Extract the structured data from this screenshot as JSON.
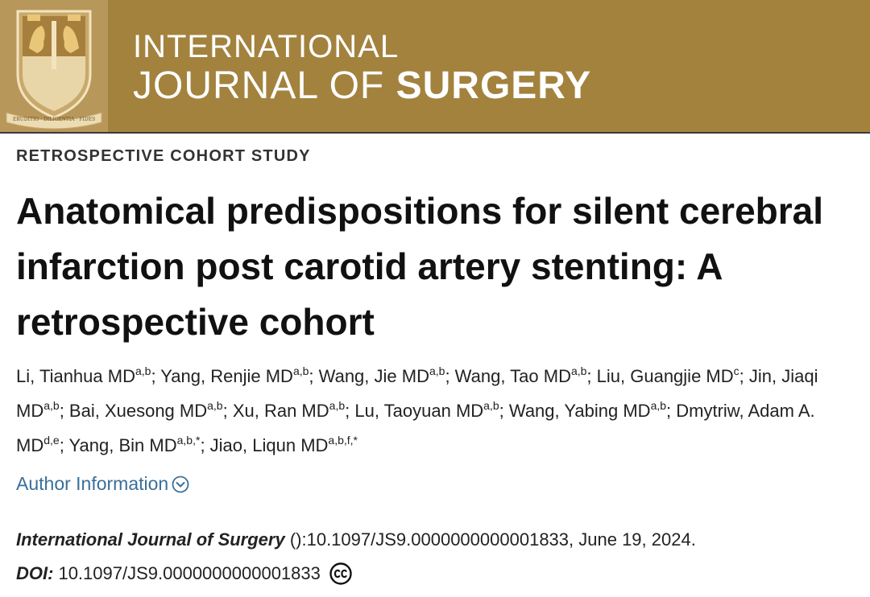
{
  "header": {
    "logo_motto": "ERUDITIO · DILIGENTIA · FIDES",
    "journal_line1": "INTERNATIONAL",
    "journal_line2_light": "JOURNAL OF ",
    "journal_line2_bold": "SURGERY",
    "colors": {
      "banner": "#a3823e",
      "text": "#ffffff"
    }
  },
  "article": {
    "type": "RETROSPECTIVE COHORT STUDY",
    "title": "Anatomical predispositions for silent cerebral infarction post carotid artery stenting: A retrospective cohort",
    "authors": [
      {
        "name": "Li, Tianhua MD",
        "aff": "a,b"
      },
      {
        "name": "Yang, Renjie MD",
        "aff": "a,b"
      },
      {
        "name": "Wang, Jie MD",
        "aff": "a,b"
      },
      {
        "name": "Wang, Tao MD",
        "aff": "a,b"
      },
      {
        "name": "Liu, Guangjie MD",
        "aff": "c"
      },
      {
        "name": "Jin, Jiaqi MD",
        "aff": "a,b"
      },
      {
        "name": "Bai, Xuesong MD",
        "aff": "a,b"
      },
      {
        "name": "Xu, Ran MD",
        "aff": "a,b"
      },
      {
        "name": "Lu, Taoyuan MD",
        "aff": "a,b"
      },
      {
        "name": "Wang, Yabing MD",
        "aff": "a,b"
      },
      {
        "name": "Dmytriw, Adam A. MD",
        "aff": "d,e"
      },
      {
        "name": "Yang, Bin MD",
        "aff": "a,b,*"
      },
      {
        "name": "Jiao, Liqun MD",
        "aff": "a,b,f,*"
      }
    ],
    "author_info_label": "Author Information",
    "citation": {
      "journal": "International Journal of Surgery",
      "rest": " ():10.1097/JS9.0000000000001833, June 19, 2024."
    },
    "doi": {
      "label": "DOI:",
      "value": "10.1097/JS9.0000000000001833",
      "license_icon": "cc-icon"
    },
    "link_color": "#3b6f98"
  }
}
